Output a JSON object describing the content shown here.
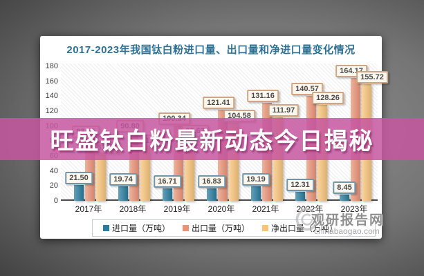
{
  "banner": {
    "text": "旺盛钛白粉最新动态今日揭秘",
    "color": "#c656a0"
  },
  "watermark": {
    "name": "观研报告网",
    "domain": "chinabaogao.com"
  },
  "chart_data": {
    "type": "bar",
    "title": "2017-2023年我国钛白粉进口量、出口量和净进口量变化情况",
    "title_color": "#2e7193",
    "categories": [
      "2017年",
      "2018年",
      "2019年",
      "2020年",
      "2021年",
      "2022年",
      "2023年"
    ],
    "series": [
      {
        "name": "进口量（万吨）",
        "color": "#287c9e",
        "label_border": "#7195a9",
        "values": [
          21.5,
          19.74,
          16.71,
          16.83,
          19.19,
          12.31,
          8.45
        ]
      },
      {
        "name": "出口量（万吨）",
        "color": "#e99476",
        "label_border": "#cfa583",
        "values": [
          83.09,
          90.8,
          100.34,
          121.41,
          131.16,
          140.57,
          164.17
        ]
      },
      {
        "name": "净出口量（万吨）",
        "color": "#f9c478",
        "label_border": "#cfa583",
        "values": [
          61.59,
          71.06,
          83.63,
          104.58,
          111.97,
          128.26,
          155.72
        ]
      }
    ],
    "ylim": [
      0,
      180
    ],
    "yticks": [
      0,
      20,
      40,
      60,
      80,
      100,
      120,
      140,
      160,
      180
    ],
    "grid": "hatched-background",
    "legend_position": "bottom",
    "value_labels": "boxed, two decimals"
  }
}
